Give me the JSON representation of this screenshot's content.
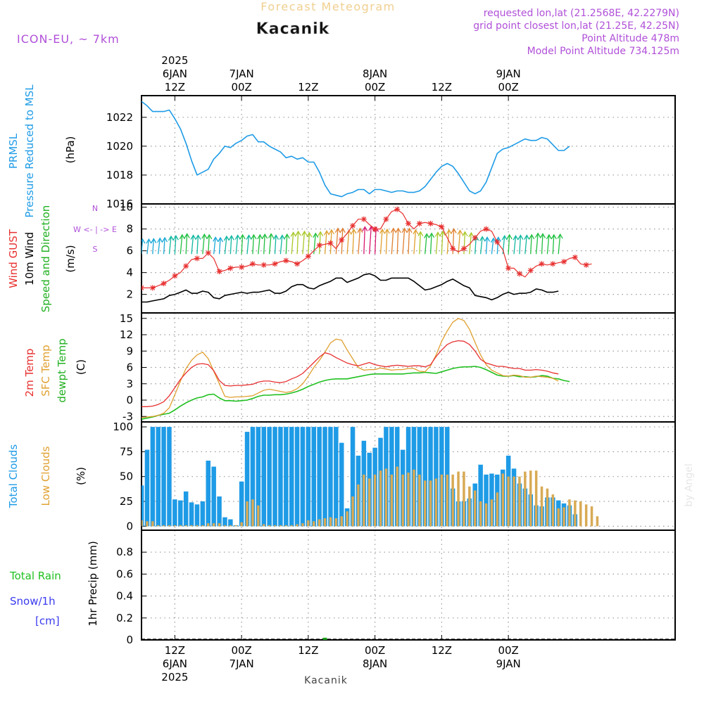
{
  "header": {
    "super_title": "Forecast Meteogram",
    "location": "Kacanik",
    "model": "ICON-EU, ~ 7km",
    "requested": "requested lon,lat (21.2568E, 42.2279N)",
    "grid_point": "grid point closest lon,lat (21.25E, 42.25N)",
    "point_alt": "Point Altitude 478m",
    "model_alt": "Model Point Altitude 734.125m",
    "footer_label": "Kacanik",
    "watermark": "by Angel"
  },
  "time_axis": {
    "unit": "hours from 6JAN 00Z",
    "range": [
      6,
      102
    ],
    "ticks": [
      {
        "h": 12,
        "lines": [
          "12Z",
          "6JAN",
          "2025"
        ]
      },
      {
        "h": 24,
        "lines": [
          "00Z",
          "7JAN"
        ]
      },
      {
        "h": 36,
        "lines": [
          "12Z"
        ]
      },
      {
        "h": 48,
        "lines": [
          "00Z",
          "8JAN"
        ]
      },
      {
        "h": 60,
        "lines": [
          "12Z"
        ]
      },
      {
        "h": 72,
        "lines": [
          "00Z",
          "9JAN"
        ]
      }
    ]
  },
  "colors": {
    "pressure": "#1e9be6",
    "gust": "#e83030",
    "wind": "#000000",
    "temp2m": "#e83030",
    "sfc": "#e0a030",
    "dewpt": "#20c020",
    "total_cloud": "#1e9be6",
    "low_cloud": "#d8aa55",
    "rain": "#20a020",
    "snow": "#3a3af0",
    "dir_label": "#b050d8",
    "text": "#000000"
  },
  "chart_data": [
    {
      "type": "line",
      "panel": "pressure",
      "ylabels": [
        "PRMSL",
        "Pressure Reduced to MSL",
        "(hPa)"
      ],
      "ylim": [
        1016,
        1023.5
      ],
      "yticks": [
        1016,
        1018,
        1020,
        1022
      ],
      "x_start": 6,
      "x_step": 1,
      "series": [
        {
          "name": "PRMSL",
          "values": [
            1023.1,
            1022.8,
            1022.4,
            1022.4,
            1022.4,
            1022.5,
            1021.9,
            1021.2,
            1020.2,
            1019,
            1018,
            1018.2,
            1018.4,
            1019.1,
            1019.5,
            1020,
            1019.9,
            1020.2,
            1020.4,
            1020.7,
            1020.8,
            1020.3,
            1020.3,
            1020,
            1019.8,
            1019.6,
            1019.2,
            1019.3,
            1019.1,
            1019.2,
            1018.9,
            1018.9,
            1018.2,
            1017.3,
            1016.7,
            1016.6,
            1016.5,
            1016.7,
            1016.8,
            1017,
            1017,
            1016.7,
            1017,
            1017,
            1016.9,
            1016.8,
            1016.9,
            1016.9,
            1016.8,
            1016.8,
            1016.9,
            1017.2,
            1017.7,
            1018.2,
            1018.6,
            1018.8,
            1018.6,
            1018.1,
            1017.5,
            1016.9,
            1016.7,
            1016.9,
            1017.5,
            1018.5,
            1019.5,
            1019.8,
            1019.9,
            1020.1,
            1020.3,
            1020.5,
            1020.4,
            1020.4,
            1020.6,
            1020.5,
            1020.1,
            1019.7,
            1019.7,
            1020
          ]
        }
      ]
    },
    {
      "type": "line",
      "panel": "wind",
      "ylabels": [
        "Wind GUST",
        "10m Wind",
        "Speed and Direction",
        "(m/s)"
      ],
      "compass": [
        "N",
        "W <- | -> E",
        "S"
      ],
      "ylim": [
        0.3,
        10.3
      ],
      "yticks": [
        2,
        4,
        6,
        8,
        10
      ],
      "x_start": 6,
      "x_step": 1,
      "series": [
        {
          "name": "Wind GUST",
          "values": [
            2.6,
            2.6,
            2.6,
            2.8,
            3,
            3.3,
            3.7,
            4,
            4.6,
            5.2,
            5.3,
            5.3,
            5.8,
            5.3,
            4.1,
            4.2,
            4.4,
            4.5,
            4.5,
            4.6,
            4.8,
            4.7,
            4.7,
            4.7,
            4.8,
            5,
            5.1,
            5,
            4.8,
            5.1,
            5.5,
            6,
            6.5,
            6.6,
            6.7,
            6.2,
            7,
            7.6,
            8.3,
            8.9,
            8.9,
            8.4,
            8,
            8,
            8.9,
            9.6,
            9.8,
            9.4,
            8.5,
            8,
            8.5,
            8.6,
            8.5,
            8.4,
            8.2,
            7.2,
            6.2,
            5.9,
            6.2,
            6.6,
            7.2,
            7.8,
            8,
            7.8,
            6.8,
            6.1,
            4.4,
            4.4,
            3.9,
            3.6,
            4.2,
            4.6,
            4.8,
            4.7,
            4.8,
            4.9,
            5,
            5.3,
            5.4,
            4.8,
            4.7,
            4.8
          ]
        },
        {
          "name": "10m Wind",
          "values": [
            1.3,
            1.3,
            1.4,
            1.5,
            1.6,
            1.9,
            2,
            2.2,
            2.4,
            2.1,
            2.1,
            2.3,
            2.2,
            1.7,
            1.6,
            1.9,
            2,
            2.1,
            2.2,
            2.1,
            2.2,
            2.2,
            2.3,
            2.4,
            2.1,
            2.1,
            2.3,
            2.7,
            2.9,
            2.9,
            2.6,
            2.5,
            2.8,
            3,
            3.2,
            3.5,
            3.5,
            3.1,
            3.3,
            3.5,
            3.8,
            3.9,
            3.7,
            3.3,
            3.3,
            3.5,
            3.5,
            3.5,
            3.5,
            3.2,
            2.8,
            2.4,
            2.5,
            2.7,
            2.9,
            3.2,
            3.4,
            3.1,
            2.8,
            2.6,
            1.9,
            1.8,
            1.7,
            1.5,
            1.7,
            2,
            2.2,
            2,
            2.1,
            2.1,
            2.2,
            2.5,
            2.4,
            2.2,
            2.2,
            2.3
          ]
        }
      ],
      "barbs_note": "speed-coloured direction arrows"
    },
    {
      "type": "line",
      "panel": "temperature",
      "ylabels": [
        "2m Temp",
        "SFC Temp",
        "dewpt Temp",
        "(C)"
      ],
      "ylim": [
        -4,
        16
      ],
      "yticks": [
        -3,
        0,
        3,
        6,
        9,
        12,
        15
      ],
      "x_start": 6,
      "x_step": 1,
      "series": [
        {
          "name": "2m Temp",
          "values": [
            -1.2,
            -1.2,
            -1.1,
            -0.8,
            -0.3,
            0.8,
            2.3,
            3.8,
            5,
            6,
            6.6,
            6.7,
            6.5,
            5.4,
            3.6,
            2.7,
            2.6,
            2.7,
            2.7,
            2.8,
            2.9,
            3.3,
            3.5,
            3.5,
            3.3,
            3.2,
            3.4,
            3.9,
            4.3,
            4.9,
            5.9,
            6.9,
            7.9,
            8.7,
            8.4,
            7.8,
            7.3,
            6.8,
            6.5,
            6.3,
            6.6,
            6.9,
            6.5,
            6.3,
            6.1,
            6.3,
            6.4,
            6.3,
            6.2,
            6.3,
            6.3,
            6.1,
            6.5,
            8,
            9.2,
            10.2,
            10.7,
            10.9,
            10.8,
            10.2,
            9,
            7.5,
            6.8,
            6.5,
            6.2,
            6.2,
            6,
            5.8,
            5.8,
            5.5,
            5.5,
            5.6,
            5.5,
            5.3,
            5,
            4.8
          ]
        },
        {
          "name": "SFC Temp",
          "values": [
            -3.2,
            -3.1,
            -3,
            -2.8,
            -2.4,
            -1.4,
            1,
            3.5,
            5.8,
            7.3,
            8.3,
            8.8,
            7.6,
            5.3,
            3,
            0.7,
            0.5,
            0.6,
            0.6,
            0.7,
            0.8,
            1.3,
            1.8,
            2,
            1.8,
            1.6,
            1.4,
            1.6,
            2.1,
            3,
            4.4,
            6,
            7.3,
            8.8,
            10.5,
            11.2,
            11,
            9.2,
            7.6,
            6,
            5.5,
            5.6,
            5.6,
            5.9,
            5.7,
            5.5,
            5.6,
            5.6,
            5.8,
            5.8,
            5.3,
            5.2,
            6.3,
            8.3,
            10.8,
            12.7,
            14.3,
            15,
            14.6,
            13,
            10.6,
            8.3,
            6.5,
            5.5,
            5,
            4.5,
            4.4,
            4.6,
            4.5,
            4.2,
            4.2,
            4.4,
            4.3,
            4.2,
            4,
            3.5
          ]
        },
        {
          "name": "dewpt Temp",
          "values": [
            -3.5,
            -3.3,
            -3.1,
            -2.8,
            -2.6,
            -2.4,
            -1.8,
            -1.1,
            -0.5,
            0,
            0.4,
            0.6,
            1,
            1.1,
            0.4,
            -0.1,
            -0.1,
            -0.2,
            -0.1,
            0,
            0.3,
            0.7,
            0.9,
            0.9,
            1,
            1,
            1.1,
            1.3,
            1.6,
            2,
            2.5,
            2.9,
            3.3,
            3.6,
            3.8,
            3.9,
            3.9,
            3.9,
            4.1,
            4.3,
            4.5,
            4.7,
            4.8,
            4.8,
            4.8,
            4.8,
            4.8,
            4.8,
            4.9,
            5,
            5,
            5.1,
            5,
            4.9,
            5.2,
            5.5,
            5.8,
            6,
            6.1,
            6.1,
            6.2,
            6,
            5.6,
            5.1,
            4.6,
            4.4,
            4.4,
            4.5,
            4.3,
            4.3,
            4.2,
            4.3,
            4.5,
            4.4,
            4,
            3.9,
            3.6,
            3.4
          ]
        }
      ]
    },
    {
      "type": "bar",
      "panel": "clouds",
      "ylabels": [
        "Total Clouds",
        "Low Clouds",
        "(%)"
      ],
      "ylim": [
        -4,
        105
      ],
      "yticks": [
        0,
        25,
        50,
        75,
        100
      ],
      "x_start": 6,
      "x_step": 1,
      "series": [
        {
          "name": "Total Clouds",
          "values": [
            41,
            77,
            100,
            100,
            100,
            100,
            27,
            26,
            35,
            24,
            22,
            25,
            66,
            60,
            30,
            9,
            7,
            1,
            45,
            95,
            100,
            100,
            100,
            100,
            100,
            100,
            100,
            100,
            100,
            100,
            100,
            100,
            100,
            100,
            100,
            100,
            84,
            18,
            100,
            71,
            86,
            74,
            79,
            89,
            100,
            100,
            100,
            77,
            100,
            100,
            100,
            100,
            100,
            100,
            100,
            100,
            38,
            25,
            25,
            28,
            43,
            62,
            52,
            53,
            52,
            57,
            71,
            58,
            43,
            38,
            32,
            21,
            20,
            29,
            29,
            26,
            23,
            21,
            12
          ]
        },
        {
          "name": "Low Clouds",
          "values": [
            6,
            5,
            5,
            1,
            1,
            1,
            1,
            1,
            1,
            1,
            1,
            1,
            3,
            3,
            3,
            1,
            1,
            1,
            4,
            25,
            27,
            21,
            2,
            1,
            1,
            1,
            1,
            1,
            2,
            3,
            6,
            5,
            7,
            8,
            9,
            8,
            10,
            15,
            30,
            42,
            52,
            48,
            52,
            56,
            58,
            52,
            60,
            52,
            54,
            57,
            52,
            46,
            46,
            48,
            52,
            52,
            52,
            55,
            55,
            40,
            36,
            25,
            23,
            27,
            34,
            53,
            50,
            50,
            50,
            55,
            56,
            56,
            40,
            38,
            32,
            18,
            19,
            27,
            26,
            25,
            22,
            20,
            10
          ]
        }
      ]
    },
    {
      "type": "bar",
      "panel": "precip",
      "ylabels": [
        "1hr Precip (mm)"
      ],
      "side_labels": {
        "rain": "Total  Rain",
        "snow": "Snow/1h",
        "snow_unit": "[cm]"
      },
      "ylim": [
        0,
        1
      ],
      "yticks": [
        0,
        0.2,
        0.4,
        0.6,
        0.8
      ],
      "series": [
        {
          "name": "Total Rain",
          "points": [
            {
              "h": 39,
              "v": 0.02
            }
          ]
        }
      ]
    }
  ]
}
